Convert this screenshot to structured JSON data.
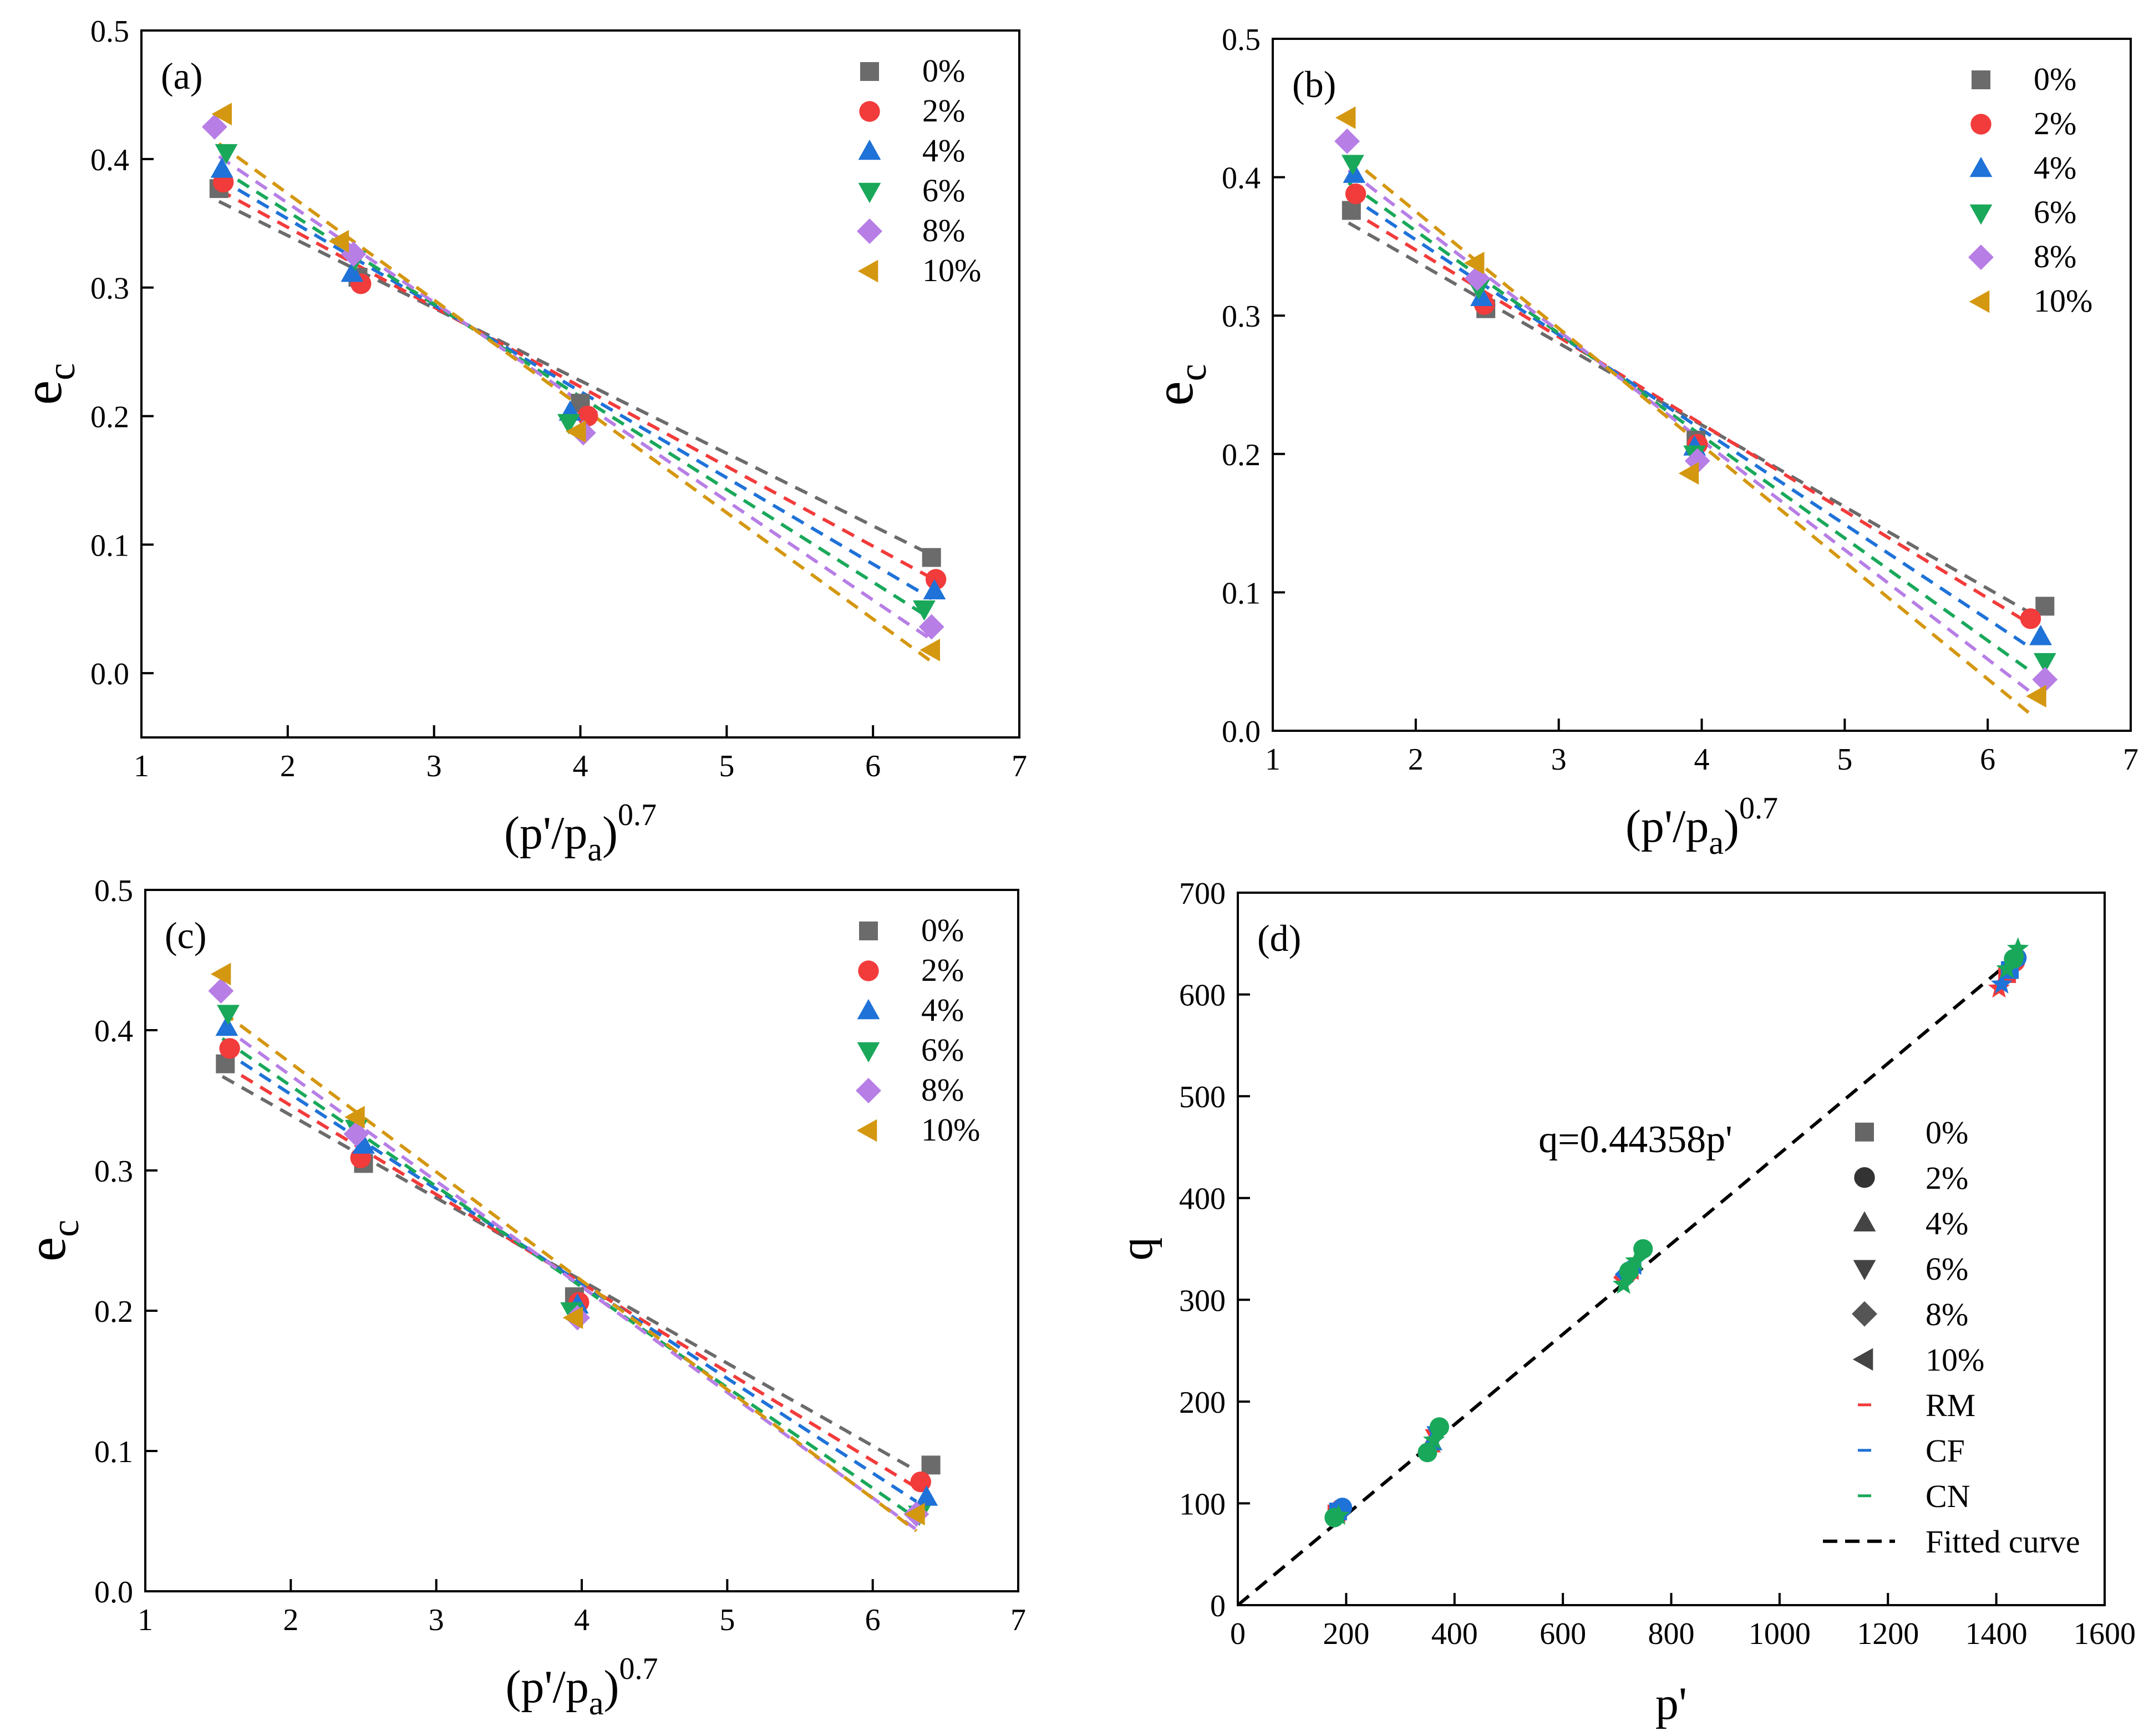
{
  "colors": {
    "0%": "#6b6b6b",
    "2%": "#f23b3b",
    "4%": "#1f72d8",
    "6%": "#19a85a",
    "8%": "#b77ee6",
    "10%": "#d49710"
  },
  "series_markers": {
    "0%": "square",
    "2%": "circle",
    "4%": "triangle-up",
    "6%": "triangle-down",
    "8%": "diamond",
    "10%": "triangle-left"
  },
  "chart_data": [
    {
      "panel": "(a)",
      "type": "scatter",
      "xlabel": "(p'/p",
      "xlabel_sub": "a",
      "xlabel_close": ")",
      "xlabel_sup": "0.7",
      "ylabel": "e",
      "ylabel_sub": "c",
      "xlim": [
        1,
        7
      ],
      "ylim": [
        -0.05,
        0.5
      ],
      "xticks": [
        1,
        2,
        3,
        4,
        5,
        6,
        7
      ],
      "yticks": [
        0.0,
        0.1,
        0.2,
        0.3,
        0.4,
        0.5
      ],
      "xtick_labels": [
        "1",
        "2",
        "3",
        "4",
        "5",
        "6",
        "7"
      ],
      "ytick_labels": [
        "0.0",
        "0.1",
        "0.2",
        "0.3",
        "0.4",
        "0.5"
      ],
      "legend": [
        "0%",
        "2%",
        "4%",
        "6%",
        "8%",
        "10%"
      ],
      "series": [
        {
          "name": "0%",
          "x": [
            1.53,
            2.48,
            4.0,
            6.4
          ],
          "y": [
            0.377,
            0.308,
            0.21,
            0.09
          ],
          "fit": [
            [
              1.53,
              0.367
            ],
            [
              6.4,
              0.092
            ]
          ]
        },
        {
          "name": "2%",
          "x": [
            1.56,
            2.5,
            4.05,
            6.43
          ],
          "y": [
            0.382,
            0.303,
            0.2,
            0.073
          ],
          "fit": [
            [
              1.53,
              0.376
            ],
            [
              6.4,
              0.074
            ]
          ]
        },
        {
          "name": "4%",
          "x": [
            1.55,
            2.44,
            3.93,
            6.42
          ],
          "y": [
            0.392,
            0.311,
            0.203,
            0.064
          ],
          "fit": [
            [
              1.53,
              0.385
            ],
            [
              6.4,
              0.058
            ]
          ]
        },
        {
          "name": "6%",
          "x": [
            1.58,
            2.46,
            3.92,
            6.35
          ],
          "y": [
            0.405,
            0.322,
            0.195,
            0.05
          ],
          "fit": [
            [
              1.53,
              0.393
            ],
            [
              6.4,
              0.042
            ]
          ]
        },
        {
          "name": "8%",
          "x": [
            1.5,
            2.45,
            4.02,
            6.4
          ],
          "y": [
            0.425,
            0.326,
            0.187,
            0.036
          ],
          "fit": [
            [
              1.53,
              0.402
            ],
            [
              6.4,
              0.026
            ]
          ]
        },
        {
          "name": "10%",
          "x": [
            1.56,
            2.36,
            3.98,
            6.4
          ],
          "y": [
            0.435,
            0.336,
            0.188,
            0.018
          ],
          "fit": [
            [
              1.53,
              0.412
            ],
            [
              6.4,
              0.009
            ]
          ]
        }
      ]
    },
    {
      "panel": "(b)",
      "type": "scatter",
      "xlabel": "(p'/p",
      "xlabel_sub": "a",
      "xlabel_close": ")",
      "xlabel_sup": "0.7",
      "ylabel": "e",
      "ylabel_sub": "c",
      "xlim": [
        1,
        7
      ],
      "ylim": [
        0.0,
        0.5
      ],
      "xticks": [
        1,
        2,
        3,
        4,
        5,
        6,
        7
      ],
      "yticks": [
        0.0,
        0.1,
        0.2,
        0.3,
        0.4,
        0.5
      ],
      "xtick_labels": [
        "1",
        "2",
        "3",
        "4",
        "5",
        "6",
        "7"
      ],
      "ytick_labels": [
        "0.0",
        "0.1",
        "0.2",
        "0.3",
        "0.4",
        "0.5"
      ],
      "legend": [
        "0%",
        "2%",
        "4%",
        "6%",
        "8%",
        "10%"
      ],
      "series": [
        {
          "name": "0%",
          "x": [
            1.55,
            2.49,
            3.96,
            6.4
          ],
          "y": [
            0.376,
            0.305,
            0.21,
            0.09
          ],
          "fit": [
            [
              1.53,
              0.367
            ],
            [
              6.3,
              0.085
            ]
          ]
        },
        {
          "name": "2%",
          "x": [
            1.58,
            2.48,
            3.97,
            6.3
          ],
          "y": [
            0.388,
            0.308,
            0.207,
            0.081
          ],
          "fit": [
            [
              1.53,
              0.377
            ],
            [
              6.3,
              0.077
            ]
          ]
        },
        {
          "name": "4%",
          "x": [
            1.57,
            2.46,
            3.95,
            6.37
          ],
          "y": [
            0.402,
            0.313,
            0.205,
            0.068
          ],
          "fit": [
            [
              1.53,
              0.387
            ],
            [
              6.3,
              0.06
            ]
          ]
        },
        {
          "name": "6%",
          "x": [
            1.56,
            2.44,
            3.95,
            6.4
          ],
          "y": [
            0.41,
            0.32,
            0.2,
            0.05
          ],
          "fit": [
            [
              1.53,
              0.396
            ],
            [
              6.3,
              0.043
            ]
          ]
        },
        {
          "name": "8%",
          "x": [
            1.52,
            2.43,
            3.97,
            6.4
          ],
          "y": [
            0.426,
            0.327,
            0.195,
            0.037
          ],
          "fit": [
            [
              1.53,
              0.405
            ],
            [
              6.3,
              0.028
            ]
          ]
        },
        {
          "name": "10%",
          "x": [
            1.52,
            2.42,
            3.92,
            6.35
          ],
          "y": [
            0.443,
            0.338,
            0.186,
            0.025
          ],
          "fit": [
            [
              1.53,
              0.415
            ],
            [
              6.3,
              0.012
            ]
          ]
        }
      ]
    },
    {
      "panel": "(c)",
      "type": "scatter",
      "xlabel": "(p'/p",
      "xlabel_sub": "a",
      "xlabel_close": ")",
      "xlabel_sup": "0.7",
      "ylabel": "e",
      "ylabel_sub": "c",
      "xlim": [
        1,
        7
      ],
      "ylim": [
        0.0,
        0.5
      ],
      "xticks": [
        1,
        2,
        3,
        4,
        5,
        6,
        7
      ],
      "yticks": [
        0.0,
        0.1,
        0.2,
        0.3,
        0.4,
        0.5
      ],
      "xtick_labels": [
        "1",
        "2",
        "3",
        "4",
        "5",
        "6",
        "7"
      ],
      "ytick_labels": [
        "0.0",
        "0.1",
        "0.2",
        "0.3",
        "0.4",
        "0.5"
      ],
      "legend": [
        "0%",
        "2%",
        "4%",
        "6%",
        "8%",
        "10%"
      ],
      "series": [
        {
          "name": "0%",
          "x": [
            1.55,
            2.5,
            3.95,
            6.4
          ],
          "y": [
            0.376,
            0.305,
            0.21,
            0.09
          ],
          "fit": [
            [
              1.53,
              0.367
            ],
            [
              6.3,
              0.086
            ]
          ]
        },
        {
          "name": "2%",
          "x": [
            1.58,
            2.48,
            3.98,
            6.33
          ],
          "y": [
            0.387,
            0.309,
            0.206,
            0.078
          ],
          "fit": [
            [
              1.53,
              0.376
            ],
            [
              6.3,
              0.074
            ]
          ]
        },
        {
          "name": "4%",
          "x": [
            1.56,
            2.5,
            3.97,
            6.37
          ],
          "y": [
            0.402,
            0.318,
            0.204,
            0.067
          ],
          "fit": [
            [
              1.53,
              0.386
            ],
            [
              6.3,
              0.064
            ]
          ]
        },
        {
          "name": "6%",
          "x": [
            1.57,
            2.45,
            3.93,
            6.32
          ],
          "y": [
            0.412,
            0.33,
            0.2,
            0.055
          ],
          "fit": [
            [
              1.53,
              0.394
            ],
            [
              6.3,
              0.052
            ]
          ]
        },
        {
          "name": "8%",
          "x": [
            1.52,
            2.45,
            3.97,
            6.3
          ],
          "y": [
            0.428,
            0.326,
            0.195,
            0.055
          ],
          "fit": [
            [
              1.53,
              0.403
            ],
            [
              6.3,
              0.044
            ]
          ]
        },
        {
          "name": "10%",
          "x": [
            1.53,
            2.45,
            3.95,
            6.3
          ],
          "y": [
            0.44,
            0.338,
            0.195,
            0.055
          ],
          "fit": [
            [
              1.53,
              0.413
            ],
            [
              6.3,
              0.043
            ]
          ]
        }
      ]
    },
    {
      "panel": "(d)",
      "type": "scatter",
      "xlabel": "p'",
      "ylabel": "q",
      "xlim": [
        0,
        1600
      ],
      "ylim": [
        0,
        700
      ],
      "xticks": [
        0,
        200,
        400,
        600,
        800,
        1000,
        1200,
        1400,
        1600
      ],
      "yticks": [
        0,
        100,
        200,
        300,
        400,
        500,
        600,
        700
      ],
      "xtick_labels": [
        "0",
        "200",
        "400",
        "600",
        "800",
        "1000",
        "1200",
        "1400",
        "1600"
      ],
      "ytick_labels": [
        "0",
        "100",
        "200",
        "300",
        "400",
        "500",
        "600",
        "700"
      ],
      "annotation": "q=0.44358p'",
      "fit_slope": 0.44358,
      "legend": [
        "0%",
        "2%",
        "4%",
        "6%",
        "8%",
        "10%",
        "RM",
        "CF",
        "CN",
        "Fitted curve"
      ],
      "legend_kinds": [
        "square",
        "circle",
        "triangle-up",
        "triangle-down",
        "diamond",
        "triangle-left",
        "line",
        "line",
        "line",
        "dashed"
      ],
      "legend_colors": [
        "#666666",
        "#333333",
        "#444444",
        "#444444",
        "#555555",
        "#444444",
        "#f23b3b",
        "#1f72d8",
        "#19a85a",
        "#000000"
      ],
      "groups": [
        {
          "name": "RM",
          "color": "#f23b3b",
          "points": [
            [
              182,
              90
            ],
            [
              190,
              95
            ],
            [
              355,
              158
            ],
            [
              365,
              165
            ],
            [
              715,
              322
            ],
            [
              725,
              330
            ],
            [
              1405,
              606
            ],
            [
              1420,
              620
            ],
            [
              1435,
              632
            ]
          ]
        },
        {
          "name": "CF",
          "color": "#1f72d8",
          "points": [
            [
              185,
              92
            ],
            [
              193,
              96
            ],
            [
              358,
              160
            ],
            [
              368,
              168
            ],
            [
              718,
              325
            ],
            [
              730,
              335
            ],
            [
              1410,
              610
            ],
            [
              1425,
              624
            ],
            [
              1438,
              636
            ]
          ]
        },
        {
          "name": "CN",
          "color": "#19a85a",
          "points": [
            [
              178,
              86
            ],
            [
              186,
              88
            ],
            [
              350,
              150
            ],
            [
              362,
              162
            ],
            [
              372,
              175
            ],
            [
              712,
              315
            ],
            [
              722,
              328
            ],
            [
              735,
              338
            ],
            [
              748,
              350
            ],
            [
              1420,
              625
            ],
            [
              1432,
              635
            ],
            [
              1440,
              645
            ]
          ]
        }
      ]
    }
  ]
}
